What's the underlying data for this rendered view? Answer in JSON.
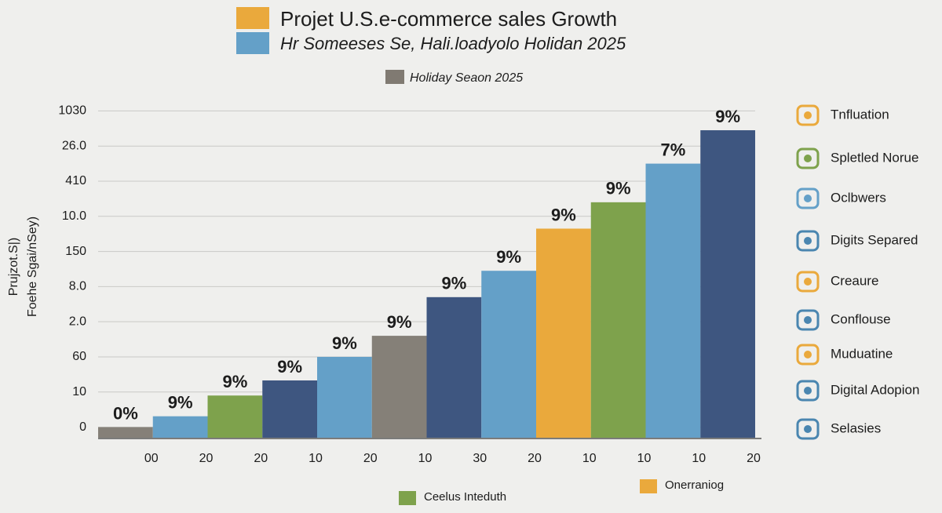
{
  "chart_data": {
    "type": "bar",
    "title": "Projet U.S.e-commerce sales Growth",
    "subtitle": "Hr Someeses Se,  Hali.loadyolo Holidan 2025",
    "y_label": [
      "Prujzot.S|)",
      "Foehe Sgai/nSey)"
    ],
    "top_legend": [
      {
        "label": "Holiday Seaon 2025",
        "color": "#807a72"
      }
    ],
    "title_marker_colors": [
      "#eaa93c",
      "#64a0c8"
    ],
    "categories": [
      "00",
      "20",
      "20",
      "10",
      "20",
      "10",
      "30",
      "20",
      "10",
      "10",
      "10",
      "20"
    ],
    "values": [
      0,
      0.31,
      0.9,
      1.33,
      2.0,
      2.6,
      3.7,
      4.45,
      5.65,
      6.4,
      7.5,
      8.45
    ],
    "bar_labels": [
      "0%",
      "9%",
      "9%",
      "9%",
      "9%",
      "9%",
      "9%",
      "9%",
      "9%",
      "9%",
      "7%",
      "9%"
    ],
    "colors": [
      "#858078",
      "#64a0c8",
      "#7ea24c",
      "#3e5680",
      "#64a0c8",
      "#858078",
      "#3e5680",
      "#64a0c8",
      "#eaa93c",
      "#7ea24c",
      "#64a0c8",
      "#3e5680"
    ],
    "ylim": [
      -0.3,
      9.5
    ],
    "yticks": [
      {
        "value": 0,
        "label": "0"
      },
      {
        "value": 1,
        "label": "10"
      },
      {
        "value": 2,
        "label": "60"
      },
      {
        "value": 3,
        "label": "2.0"
      },
      {
        "value": 4,
        "label": "8.0"
      },
      {
        "value": 5,
        "label": "150"
      },
      {
        "value": 6,
        "label": "10.0"
      },
      {
        "value": 7,
        "label": "410"
      },
      {
        "value": 8,
        "label": "26.0"
      },
      {
        "value": 9,
        "label": "1030"
      }
    ],
    "grid": true,
    "side_legend": [
      {
        "label": "Tnfluation",
        "color": "#eaa93c"
      },
      {
        "label": "Spletled Norue",
        "color": "#7ea24c"
      },
      {
        "label": "Oclbwers",
        "color": "#64a0c8"
      },
      {
        "label": "Digits Separed",
        "color": "#4a86b0"
      },
      {
        "label": "Creaure",
        "color": "#eaa93c"
      },
      {
        "label": "Conflouse",
        "color": "#4a86b0"
      },
      {
        "label": "Muduatine",
        "color": "#eaa93c"
      },
      {
        "label": "Digital Adopion",
        "color": "#4a86b0"
      },
      {
        "label": "Selasies",
        "color": "#4a86b0"
      }
    ],
    "bottom_legend": [
      {
        "label": "Ceelus Inteduth",
        "color": "#7ea24c"
      },
      {
        "label": "Onerraniog",
        "color": "#eaa93c"
      }
    ]
  }
}
